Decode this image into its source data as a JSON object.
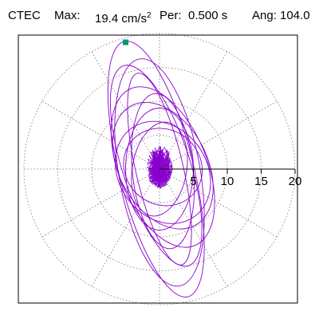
{
  "header": {
    "station": "CTEC",
    "max_label": "Max:",
    "max_value": "19.4 cm/s",
    "max_exp": "2",
    "per_label": "Per:",
    "per_value": "0.500 s",
    "ang_label": "Ang:",
    "ang_value": "104.0"
  },
  "chart_data": {
    "type": "scatter",
    "title": "",
    "xlabel": "",
    "ylabel": "",
    "polar": true,
    "rlim": [
      0,
      20
    ],
    "r_ticks": [
      5,
      10,
      15,
      20
    ],
    "r_tick_labels": [
      "5",
      "10",
      "15",
      "20"
    ],
    "grid": true,
    "colors": {
      "trace": "#8800cc",
      "marker": "#009977",
      "grid": "#777777",
      "frame": "#000000"
    },
    "peak_marker": {
      "x": -5.0,
      "y": 18.7
    },
    "series": [
      {
        "values": [
          {
            "semi_major": 19.4,
            "semi_minor": 5.5,
            "rotation_deg": 104.0,
            "x_offset": -0.5,
            "y_offset": 0.0
          },
          {
            "semi_major": 17.0,
            "semi_minor": 6.0,
            "rotation_deg": 100.0,
            "x_offset": 0.0,
            "y_offset": -0.5
          },
          {
            "semi_major": 15.5,
            "semi_minor": 5.0,
            "rotation_deg": 108.0,
            "x_offset": -0.5,
            "y_offset": 0.5
          },
          {
            "semi_major": 14.5,
            "semi_minor": 3.5,
            "rotation_deg": 103.0,
            "x_offset": 0.0,
            "y_offset": 0.0
          },
          {
            "semi_major": 12.5,
            "semi_minor": 6.5,
            "rotation_deg": 112.0,
            "x_offset": 0.5,
            "y_offset": 0.3
          },
          {
            "semi_major": 11.5,
            "semi_minor": 4.5,
            "rotation_deg": 96.0,
            "x_offset": 0.5,
            "y_offset": -0.3
          },
          {
            "semi_major": 10.0,
            "semi_minor": 6.5,
            "rotation_deg": 118.0,
            "x_offset": 0.5,
            "y_offset": 0.5
          },
          {
            "semi_major": 9.0,
            "semi_minor": 5.0,
            "rotation_deg": 90.0,
            "x_offset": 0.0,
            "y_offset": 0.0
          },
          {
            "semi_major": 8.0,
            "semi_minor": 6.5,
            "rotation_deg": 125.0,
            "x_offset": 0.5,
            "y_offset": -0.5
          },
          {
            "semi_major": 7.0,
            "semi_minor": 4.0,
            "rotation_deg": 80.0,
            "x_offset": 0.0,
            "y_offset": 0.0
          },
          {
            "semi_major": 6.0,
            "semi_minor": 5.5,
            "rotation_deg": 140.0,
            "x_offset": 0.5,
            "y_offset": 0.3
          }
        ],
        "core_cluster": {
          "center_x": 0.0,
          "center_y": 0.3,
          "radius_x": 2.0,
          "radius_y": 3.2
        }
      }
    ]
  }
}
